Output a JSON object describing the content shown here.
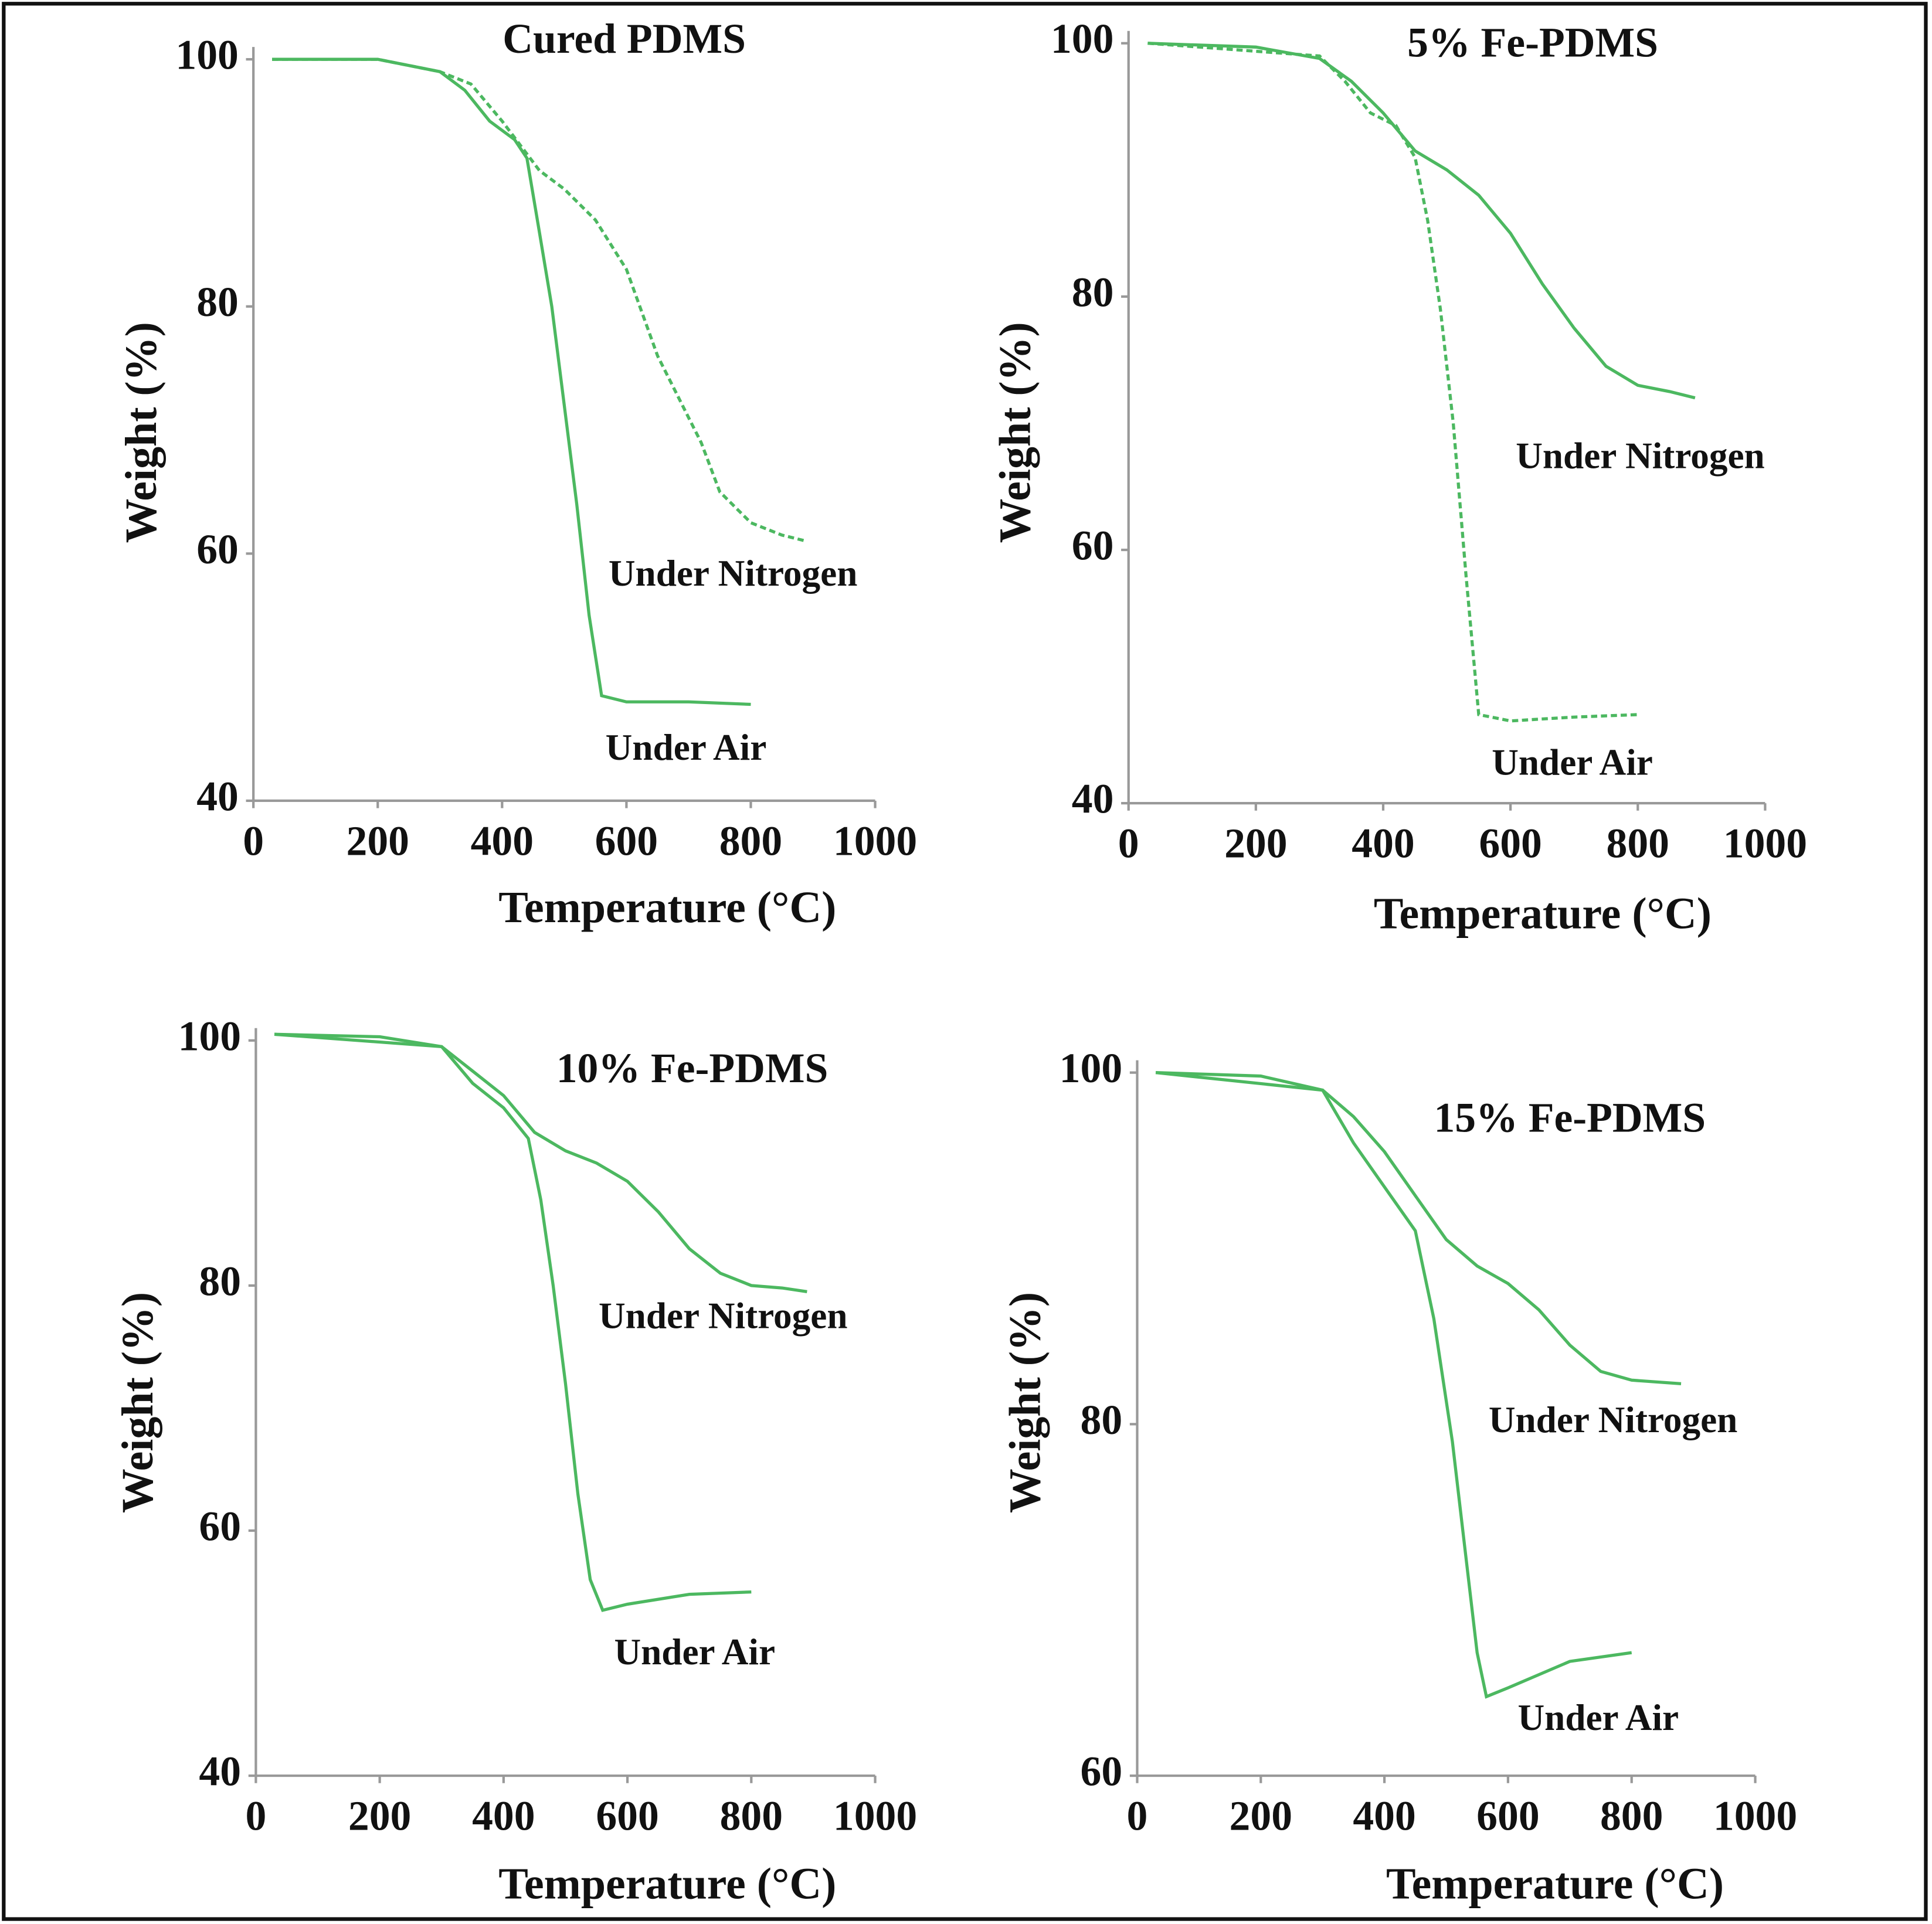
{
  "chart_data": [
    {
      "type": "line",
      "title": "Cured PDMS",
      "xlabel": "Temperature (°C)",
      "ylabel": "Weight (%)",
      "xlim": [
        0,
        1000
      ],
      "xticks": [
        0,
        200,
        400,
        600,
        800,
        1000
      ],
      "ylim": [
        40,
        100
      ],
      "yticks": [
        40,
        60,
        80,
        100
      ],
      "series": [
        {
          "name": "Under Nitrogen",
          "color": "#4cb860",
          "dashed": true,
          "x": [
            30,
            200,
            300,
            350,
            400,
            430,
            460,
            500,
            550,
            600,
            650,
            700,
            720,
            750,
            800,
            850,
            890
          ],
          "values": [
            100,
            100,
            99,
            98,
            95,
            93,
            91,
            89.5,
            87,
            83,
            76,
            71,
            69,
            65,
            62.5,
            61.5,
            61
          ]
        },
        {
          "name": "Under Air",
          "color": "#4cb860",
          "dashed": false,
          "x": [
            30,
            200,
            300,
            340,
            380,
            420,
            440,
            460,
            480,
            500,
            520,
            540,
            560,
            600,
            700,
            800
          ],
          "values": [
            100,
            100,
            99,
            97.5,
            95,
            93.5,
            92,
            86,
            80,
            72,
            64,
            55,
            48.5,
            48,
            48,
            47.8
          ]
        }
      ]
    },
    {
      "type": "line",
      "title": "5% Fe-PDMS",
      "xlabel": "Temperature (°C)",
      "ylabel": "Weight (%)",
      "xlim": [
        0,
        1000
      ],
      "xticks": [
        0,
        200,
        400,
        600,
        800,
        1000
      ],
      "ylim": [
        40,
        100
      ],
      "yticks": [
        40,
        60,
        80,
        100
      ],
      "series": [
        {
          "name": "Under Nitrogen",
          "color": "#4cb860",
          "dashed": false,
          "x": [
            30,
            200,
            300,
            350,
            400,
            450,
            500,
            550,
            600,
            650,
            700,
            750,
            800,
            850,
            890
          ],
          "values": [
            100,
            99.7,
            98.8,
            97,
            94.5,
            91.5,
            90,
            88,
            85,
            81,
            77.5,
            74.5,
            73,
            72.5,
            72
          ]
        },
        {
          "name": "Under Air",
          "color": "#4cb860",
          "dashed": true,
          "x": [
            30,
            300,
            340,
            380,
            420,
            450,
            470,
            490,
            510,
            530,
            550,
            600,
            700,
            800
          ],
          "values": [
            100,
            99,
            97,
            94.5,
            93.5,
            91,
            86,
            79,
            70,
            58,
            47,
            46.5,
            46.8,
            47
          ]
        }
      ]
    },
    {
      "type": "line",
      "title": "10% Fe-PDMS",
      "xlabel": "Temperature (°C)",
      "ylabel": "Weight (%)",
      "xlim": [
        0,
        1000
      ],
      "xticks": [
        0,
        200,
        400,
        600,
        800,
        1000
      ],
      "ylim": [
        40,
        100
      ],
      "yticks": [
        40,
        60,
        80,
        100
      ],
      "series": [
        {
          "name": "Under Nitrogen",
          "color": "#4cb860",
          "dashed": false,
          "x": [
            30,
            200,
            300,
            350,
            400,
            450,
            500,
            550,
            600,
            650,
            700,
            750,
            800,
            850,
            890
          ],
          "values": [
            100.5,
            100.3,
            99.5,
            97.5,
            95.5,
            92.5,
            91,
            90,
            88.5,
            86,
            83,
            81,
            80,
            79.8,
            79.5
          ]
        },
        {
          "name": "Under Air",
          "color": "#4cb860",
          "dashed": false,
          "x": [
            30,
            300,
            350,
            400,
            440,
            460,
            480,
            500,
            520,
            540,
            560,
            600,
            700,
            800
          ],
          "values": [
            100.5,
            99.5,
            96.5,
            94.5,
            92,
            87,
            80,
            72,
            63,
            56,
            53.5,
            54,
            54.8,
            55
          ]
        }
      ]
    },
    {
      "type": "line",
      "title": "15% Fe-PDMS",
      "xlabel": "Temperature (°C)",
      "ylabel": "Weight (%)",
      "xlim": [
        0,
        1000
      ],
      "xticks": [
        0,
        200,
        400,
        600,
        800,
        1000
      ],
      "ylim": [
        60,
        100
      ],
      "yticks": [
        60,
        80,
        100
      ],
      "series": [
        {
          "name": "Under Nitrogen",
          "color": "#4cb860",
          "dashed": false,
          "x": [
            30,
            200,
            300,
            350,
            400,
            450,
            500,
            550,
            600,
            650,
            700,
            750,
            800,
            880
          ],
          "values": [
            100,
            99.8,
            99,
            97.5,
            95.5,
            93,
            90.5,
            89,
            88,
            86.5,
            84.5,
            83,
            82.5,
            82.3
          ]
        },
        {
          "name": "Under Air",
          "color": "#4cb860",
          "dashed": false,
          "x": [
            30,
            300,
            350,
            400,
            450,
            480,
            510,
            530,
            550,
            565,
            600,
            700,
            800
          ],
          "values": [
            100,
            99,
            96,
            93.5,
            91,
            86,
            79,
            73,
            67,
            64.5,
            65,
            66.5,
            67
          ]
        }
      ]
    }
  ]
}
